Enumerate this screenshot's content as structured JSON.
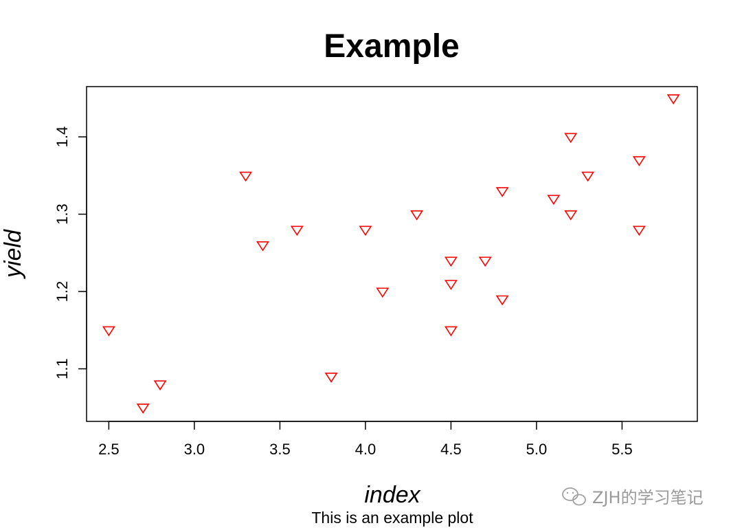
{
  "chart_data": {
    "type": "scatter",
    "title": "Example",
    "subtitle": "This is an example plot",
    "xlabel": "index",
    "ylabel": "yield",
    "xlim": [
      2.37,
      5.94
    ],
    "ylim": [
      1.032,
      1.465
    ],
    "xticks": [
      2.5,
      3.0,
      3.5,
      4.0,
      4.5,
      5.0,
      5.5
    ],
    "yticks": [
      1.1,
      1.2,
      1.3,
      1.4
    ],
    "xtick_labels": [
      "2.5",
      "3.0",
      "3.5",
      "4.0",
      "4.5",
      "5.0",
      "5.5"
    ],
    "ytick_labels": [
      "1.1",
      "1.2",
      "1.3",
      "1.4"
    ],
    "grid": false,
    "marker": "triangle-down",
    "marker_color": "#ff0000",
    "points": [
      {
        "x": 2.5,
        "y": 1.15
      },
      {
        "x": 2.7,
        "y": 1.05
      },
      {
        "x": 2.8,
        "y": 1.08
      },
      {
        "x": 3.3,
        "y": 1.35
      },
      {
        "x": 3.4,
        "y": 1.26
      },
      {
        "x": 3.6,
        "y": 1.28
      },
      {
        "x": 3.8,
        "y": 1.09
      },
      {
        "x": 4.0,
        "y": 1.28
      },
      {
        "x": 4.1,
        "y": 1.2
      },
      {
        "x": 4.3,
        "y": 1.3
      },
      {
        "x": 4.5,
        "y": 1.24
      },
      {
        "x": 4.5,
        "y": 1.21
      },
      {
        "x": 4.5,
        "y": 1.15
      },
      {
        "x": 4.7,
        "y": 1.24
      },
      {
        "x": 4.8,
        "y": 1.33
      },
      {
        "x": 4.8,
        "y": 1.19
      },
      {
        "x": 5.1,
        "y": 1.32
      },
      {
        "x": 5.2,
        "y": 1.4
      },
      {
        "x": 5.2,
        "y": 1.3
      },
      {
        "x": 5.3,
        "y": 1.35
      },
      {
        "x": 5.6,
        "y": 1.37
      },
      {
        "x": 5.6,
        "y": 1.28
      },
      {
        "x": 5.8,
        "y": 1.45
      }
    ]
  },
  "watermark": {
    "text": "ZJH的学习笔记",
    "icon": "wechat-icon"
  }
}
